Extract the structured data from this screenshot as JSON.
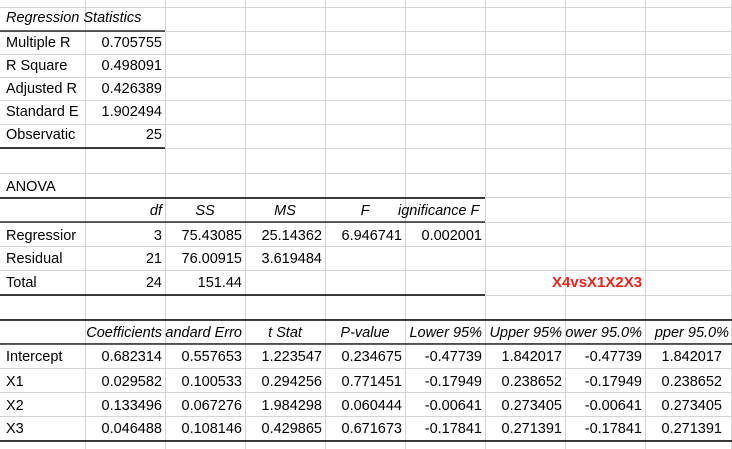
{
  "regression_statistics": {
    "title": "Regression Statistics",
    "rows": [
      {
        "label": "Multiple R",
        "value": "0.705755"
      },
      {
        "label": "R Square",
        "value": "0.498091"
      },
      {
        "label": "Adjusted R",
        "value": "0.426389"
      },
      {
        "label": "Standard E",
        "value": "1.902494"
      },
      {
        "label": "Observatic",
        "value": "25"
      }
    ]
  },
  "anova": {
    "title": "ANOVA",
    "headers": [
      "df",
      "SS",
      "MS",
      "F",
      "ignificance F"
    ],
    "rows": [
      {
        "label": "Regressior",
        "df": "3",
        "ss": "75.43085",
        "ms": "25.14362",
        "f": "6.946741",
        "sig": "0.002001"
      },
      {
        "label": "Residual",
        "df": "21",
        "ss": "76.00915",
        "ms": "3.619484",
        "f": "",
        "sig": ""
      },
      {
        "label": "Total",
        "df": "24",
        "ss": "151.44",
        "ms": "",
        "f": "",
        "sig": ""
      }
    ]
  },
  "model_label": "X4vsX1X2X3",
  "coefficients": {
    "headers": [
      "Coefficients",
      "andard Erro",
      "t Stat",
      "P-value",
      "Lower 95%",
      "Upper 95%",
      "ower 95.0%",
      "pper 95.0%"
    ],
    "rows": [
      {
        "label": "Intercept",
        "values": [
          "0.682314",
          "0.557653",
          "1.223547",
          "0.234675",
          "-0.47739",
          "1.842017",
          "-0.47739",
          "1.842017"
        ]
      },
      {
        "label": "X1",
        "values": [
          "0.029582",
          "0.100533",
          "0.294256",
          "0.771451",
          "-0.17949",
          "0.238652",
          "-0.17949",
          "0.238652"
        ]
      },
      {
        "label": "X2",
        "values": [
          "0.133496",
          "0.067276",
          "1.984298",
          "0.060444",
          "-0.00641",
          "0.273405",
          "-0.00641",
          "0.273405"
        ]
      },
      {
        "label": "X3",
        "values": [
          "0.046488",
          "0.108146",
          "0.429865",
          "0.671673",
          "-0.17841",
          "0.271391",
          "-0.17841",
          "0.271391"
        ]
      }
    ]
  },
  "colors": {
    "gridline": "#d4d4d4",
    "border": "#000000",
    "accent_red": "#e8261f"
  }
}
